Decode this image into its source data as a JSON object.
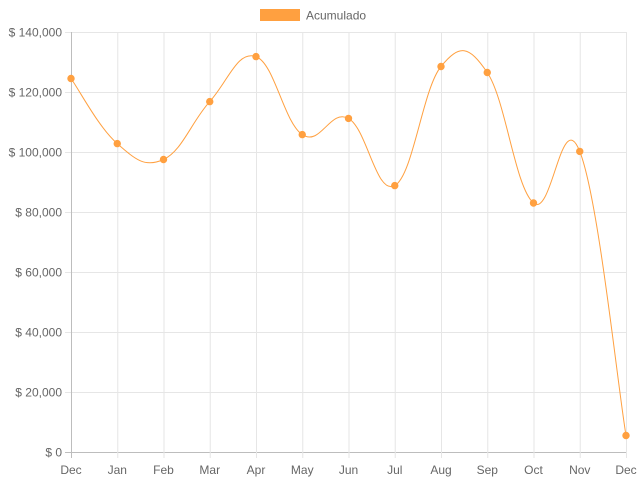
{
  "chart_data": {
    "type": "line",
    "categories": [
      "Dec",
      "Jan",
      "Feb",
      "Mar",
      "Apr",
      "May",
      "Jun",
      "Jul",
      "Aug",
      "Sep",
      "Oct",
      "Nov",
      "Dec"
    ],
    "series": [
      {
        "name": "Acumulado",
        "color": "#ffa040",
        "values": [
          124500,
          102800,
          97500,
          116800,
          131800,
          105800,
          111200,
          88800,
          128500,
          126500,
          83000,
          100200,
          5500
        ]
      }
    ],
    "y_ticks": [
      0,
      20000,
      40000,
      60000,
      80000,
      100000,
      120000,
      140000
    ],
    "y_tick_labels": [
      "$ 0",
      "$ 20,000",
      "$ 40,000",
      "$ 60,000",
      "$ 80,000",
      "$ 100,000",
      "$ 120,000",
      "$ 140,000"
    ],
    "ylim": [
      0,
      140000
    ],
    "grid": true,
    "legend_position": "top",
    "title": "",
    "xlabel": "",
    "ylabel": ""
  },
  "colors": {
    "grid": "#e6e6e6",
    "axis": "#bdbdbd",
    "tick_text": "#666666"
  }
}
